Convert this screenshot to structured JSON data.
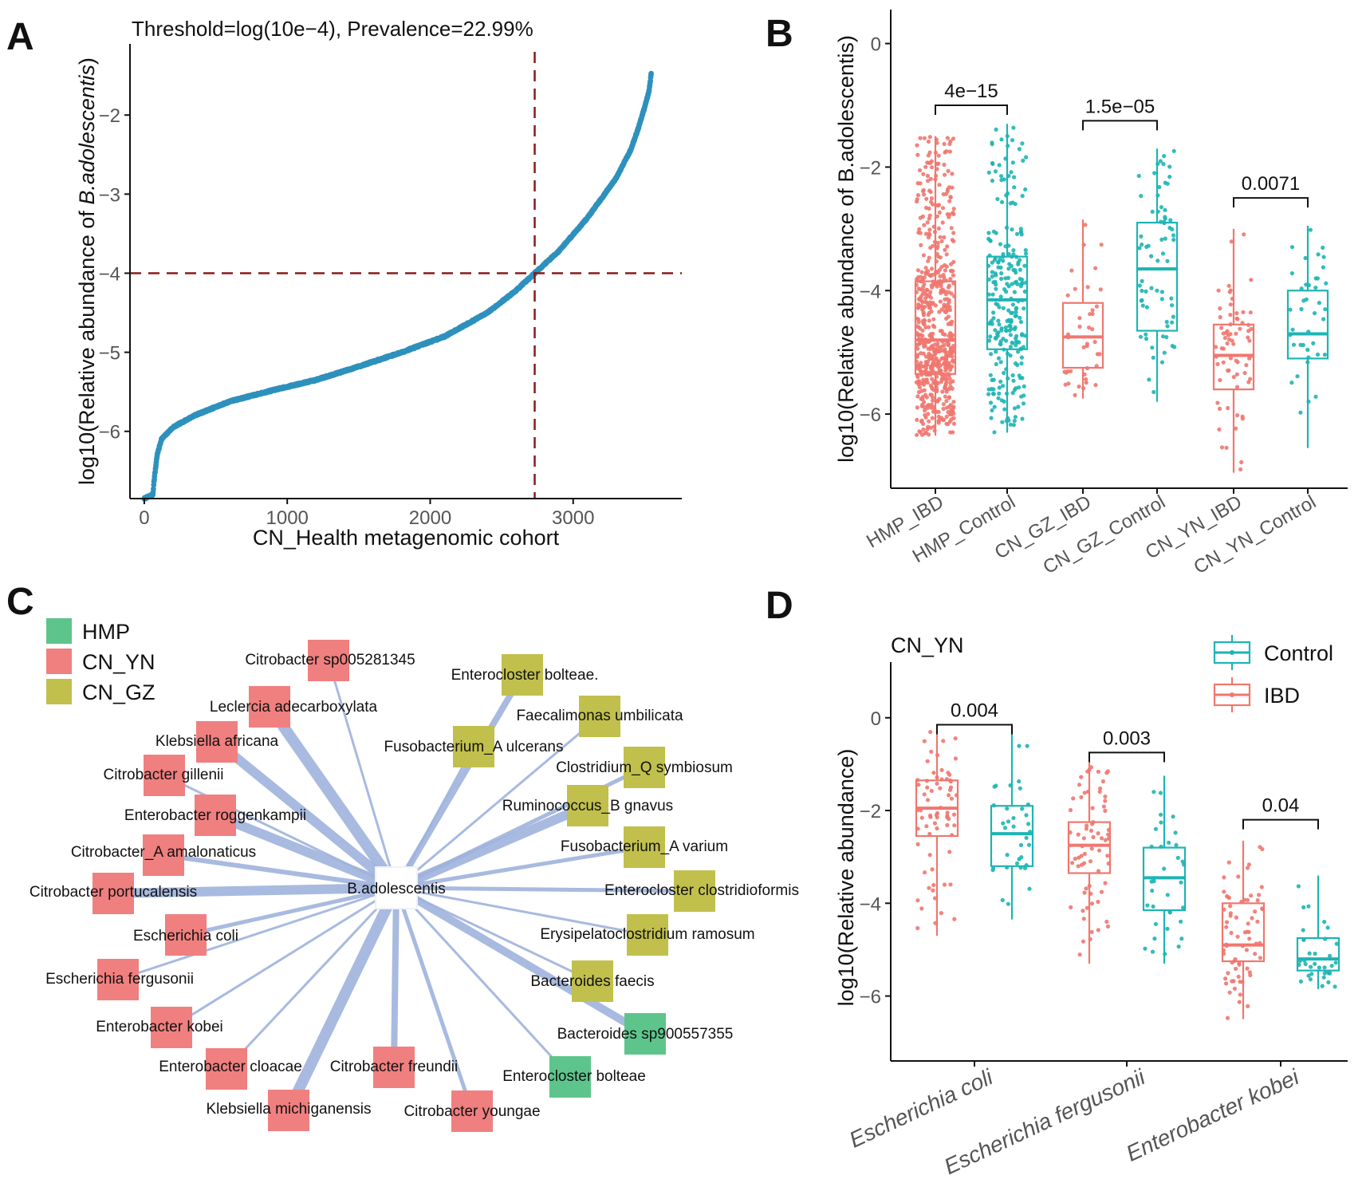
{
  "panels": {
    "A": {
      "letter": "A"
    },
    "B": {
      "letter": "B"
    },
    "C": {
      "letter": "C"
    },
    "D": {
      "letter": "D"
    }
  },
  "chart_data": [
    {
      "id": "A",
      "type": "scatter",
      "title": "Threshold=log(10e−4), Prevalence=22.99%",
      "xlabel": "CN_Health metagenomic cohort",
      "ylabel_prefix": "log10(Relative abundance of ",
      "ylabel_italic": "B.adolescentis",
      "ylabel_suffix": ")",
      "xlim": [
        -100,
        3760
      ],
      "ylim": [
        -6.85,
        -1.1
      ],
      "xticks": [
        0,
        1000,
        2000,
        3000
      ],
      "xtick_labels": [
        "0",
        "1000",
        "2000",
        "3000"
      ],
      "yticks": [
        -2,
        -3,
        -4,
        -5,
        -6
      ],
      "ytick_labels": [
        "−2",
        "−3",
        "−4",
        "−5",
        "−6"
      ],
      "n_samples": 3548,
      "curve_x": [
        0,
        60,
        70,
        90,
        120,
        200,
        350,
        600,
        900,
        1200,
        1500,
        1800,
        2100,
        2400,
        2600,
        2731,
        2900,
        3100,
        3300,
        3400,
        3450,
        3500,
        3530,
        3548
      ],
      "curve_y": [
        -6.85,
        -6.8,
        -6.6,
        -6.3,
        -6.1,
        -5.95,
        -5.8,
        -5.62,
        -5.48,
        -5.35,
        -5.18,
        -5.0,
        -4.8,
        -4.5,
        -4.22,
        -4.0,
        -3.72,
        -3.3,
        -2.8,
        -2.45,
        -2.2,
        -1.9,
        -1.7,
        -1.45
      ],
      "threshold_y": -4,
      "threshold_x": 2731,
      "color": "#2e91bd",
      "threshold_color": "#8b1a1a"
    },
    {
      "id": "B",
      "type": "box",
      "ylabel": "log10(Relative abundance of B.adolescentis)",
      "ylim": [
        -7.2,
        0.55
      ],
      "yticks": [
        0,
        -2,
        -4,
        -6
      ],
      "ytick_labels": [
        "0",
        "−2",
        "−4",
        "−6"
      ],
      "categories": [
        "HMP_IBD",
        "HMP_Control",
        "CN_GZ_IBD",
        "CN_GZ_Control",
        "CN_YN_IBD",
        "CN_YN_Control"
      ],
      "boxes": [
        {
          "group": "IBD",
          "n": 600,
          "min": -6.35,
          "q1": -5.35,
          "median": -4.8,
          "q3": -3.85,
          "max": -1.5
        },
        {
          "group": "Control",
          "n": 250,
          "min": -6.3,
          "q1": -4.95,
          "median": -4.15,
          "q3": -3.45,
          "max": -1.3
        },
        {
          "group": "IBD",
          "n": 40,
          "min": -5.75,
          "q1": -5.25,
          "median": -4.75,
          "q3": -4.2,
          "max": -2.85
        },
        {
          "group": "Control",
          "n": 70,
          "min": -5.8,
          "q1": -4.65,
          "median": -3.65,
          "q3": -2.9,
          "max": -1.7
        },
        {
          "group": "IBD",
          "n": 70,
          "min": -6.95,
          "q1": -5.6,
          "median": -5.05,
          "q3": -4.55,
          "max": -3.0
        },
        {
          "group": "Control",
          "n": 40,
          "min": -6.55,
          "q1": -5.1,
          "median": -4.7,
          "q3": -4.0,
          "max": -2.95
        }
      ],
      "pvalues": [
        {
          "from": 0,
          "to": 1,
          "label": "4e−15",
          "y": -1.0
        },
        {
          "from": 2,
          "to": 3,
          "label": "1.5e−05",
          "y": -1.25
        },
        {
          "from": 4,
          "to": 5,
          "label": "0.0071",
          "y": -2.5
        }
      ],
      "colors": {
        "IBD": "#f0776f",
        "Control": "#1db5b3"
      }
    },
    {
      "id": "C",
      "type": "network",
      "center": "B.adolescentis",
      "legend": [
        {
          "label": "HMP",
          "color": "#5dc58b"
        },
        {
          "label": "CN_YN",
          "color": "#f07f7f"
        },
        {
          "label": "CN_GZ",
          "color": "#c1c04c"
        }
      ],
      "edge_color": "#9fb3dc",
      "nodes": [
        {
          "label": "Citrobacter sp005281345",
          "group": "CN_YN",
          "weight": 3
        },
        {
          "label": "Leclercia adecarboxylata",
          "group": "CN_YN",
          "weight": 14
        },
        {
          "label": "Klebsiella africana",
          "group": "CN_YN",
          "weight": 12
        },
        {
          "label": "Citrobacter gillenii",
          "group": "CN_YN",
          "weight": 3
        },
        {
          "label": "Enterobacter roggenkampii",
          "group": "CN_YN",
          "weight": 12
        },
        {
          "label": "Citrobacter_A amalonaticus",
          "group": "CN_YN",
          "weight": 6
        },
        {
          "label": "Citrobacter portucalensis",
          "group": "CN_YN",
          "weight": 12
        },
        {
          "label": "Escherichia coli",
          "group": "CN_YN",
          "weight": 5
        },
        {
          "label": "Escherichia fergusonii",
          "group": "CN_YN",
          "weight": 3
        },
        {
          "label": "Enterobacter kobei",
          "group": "CN_YN",
          "weight": 3
        },
        {
          "label": "Enterobacter cloacae",
          "group": "CN_YN",
          "weight": 3
        },
        {
          "label": "Klebsiella michiganensis",
          "group": "CN_YN",
          "weight": 14
        },
        {
          "label": "Citrobacter freundii",
          "group": "CN_YN",
          "weight": 8
        },
        {
          "label": "Citrobacter youngae",
          "group": "CN_YN",
          "weight": 5
        },
        {
          "label": "Enterocloster bolteae.",
          "group": "CN_GZ",
          "weight": 8
        },
        {
          "label": "Faecalimonas umbilicata",
          "group": "CN_GZ",
          "weight": 3
        },
        {
          "label": "Fusobacterium_A ulcerans",
          "group": "CN_GZ",
          "weight": 3
        },
        {
          "label": "Clostridium_Q symbiosum",
          "group": "CN_GZ",
          "weight": 5
        },
        {
          "label": "Ruminococcus_B gnavus",
          "group": "CN_GZ",
          "weight": 12
        },
        {
          "label": "Fusobacterium_A varium",
          "group": "CN_GZ",
          "weight": 5
        },
        {
          "label": "Enterocloster clostridioformis",
          "group": "CN_GZ",
          "weight": 5
        },
        {
          "label": "Erysipelatoclostridium ramosum",
          "group": "CN_GZ",
          "weight": 3
        },
        {
          "label": "Bacteroides faecis",
          "group": "CN_GZ",
          "weight": 3
        },
        {
          "label": "Bacteroides sp900557355",
          "group": "HMP",
          "weight": 10
        },
        {
          "label": "Enterocloster bolteae",
          "group": "HMP",
          "weight": 3
        }
      ]
    },
    {
      "id": "D",
      "type": "box",
      "subtitle": "CN_YN",
      "ylabel": "log10(Relative abundance)",
      "ylim": [
        -7.4,
        1.2
      ],
      "yticks": [
        0,
        -2,
        -4,
        -6
      ],
      "ytick_labels": [
        "0",
        "−2",
        "−4",
        "−6"
      ],
      "categories": [
        "Escherichia coli",
        "Escherichia fergusonii",
        "Enterobacter kobei"
      ],
      "legend": [
        "Control",
        "IBD"
      ],
      "boxes": [
        {
          "cat": 0,
          "group": "IBD",
          "n": 70,
          "min": -4.7,
          "q1": -2.55,
          "median": -1.95,
          "q3": -1.35,
          "max": -0.25
        },
        {
          "cat": 0,
          "group": "Control",
          "n": 35,
          "min": -4.35,
          "q1": -3.2,
          "median": -2.5,
          "q3": -1.9,
          "max": -0.2
        },
        {
          "cat": 1,
          "group": "IBD",
          "n": 70,
          "min": -5.3,
          "q1": -3.35,
          "median": -2.75,
          "q3": -2.25,
          "max": -0.95
        },
        {
          "cat": 1,
          "group": "Control",
          "n": 35,
          "min": -5.3,
          "q1": -4.15,
          "median": -3.45,
          "q3": -2.8,
          "max": -1.25
        },
        {
          "cat": 2,
          "group": "IBD",
          "n": 70,
          "min": -6.5,
          "q1": -5.25,
          "median": -4.9,
          "q3": -4.0,
          "max": -2.65
        },
        {
          "cat": 2,
          "group": "Control",
          "n": 35,
          "min": -5.85,
          "q1": -5.45,
          "median": -5.2,
          "q3": -4.75,
          "max": -3.4
        }
      ],
      "pvalues": [
        {
          "cat": 0,
          "label": "0.004",
          "y": -0.15
        },
        {
          "cat": 1,
          "label": "0.003",
          "y": -0.75
        },
        {
          "cat": 2,
          "label": "0.04",
          "y": -2.2
        }
      ],
      "colors": {
        "IBD": "#f0776f",
        "Control": "#1db5b3"
      }
    }
  ]
}
